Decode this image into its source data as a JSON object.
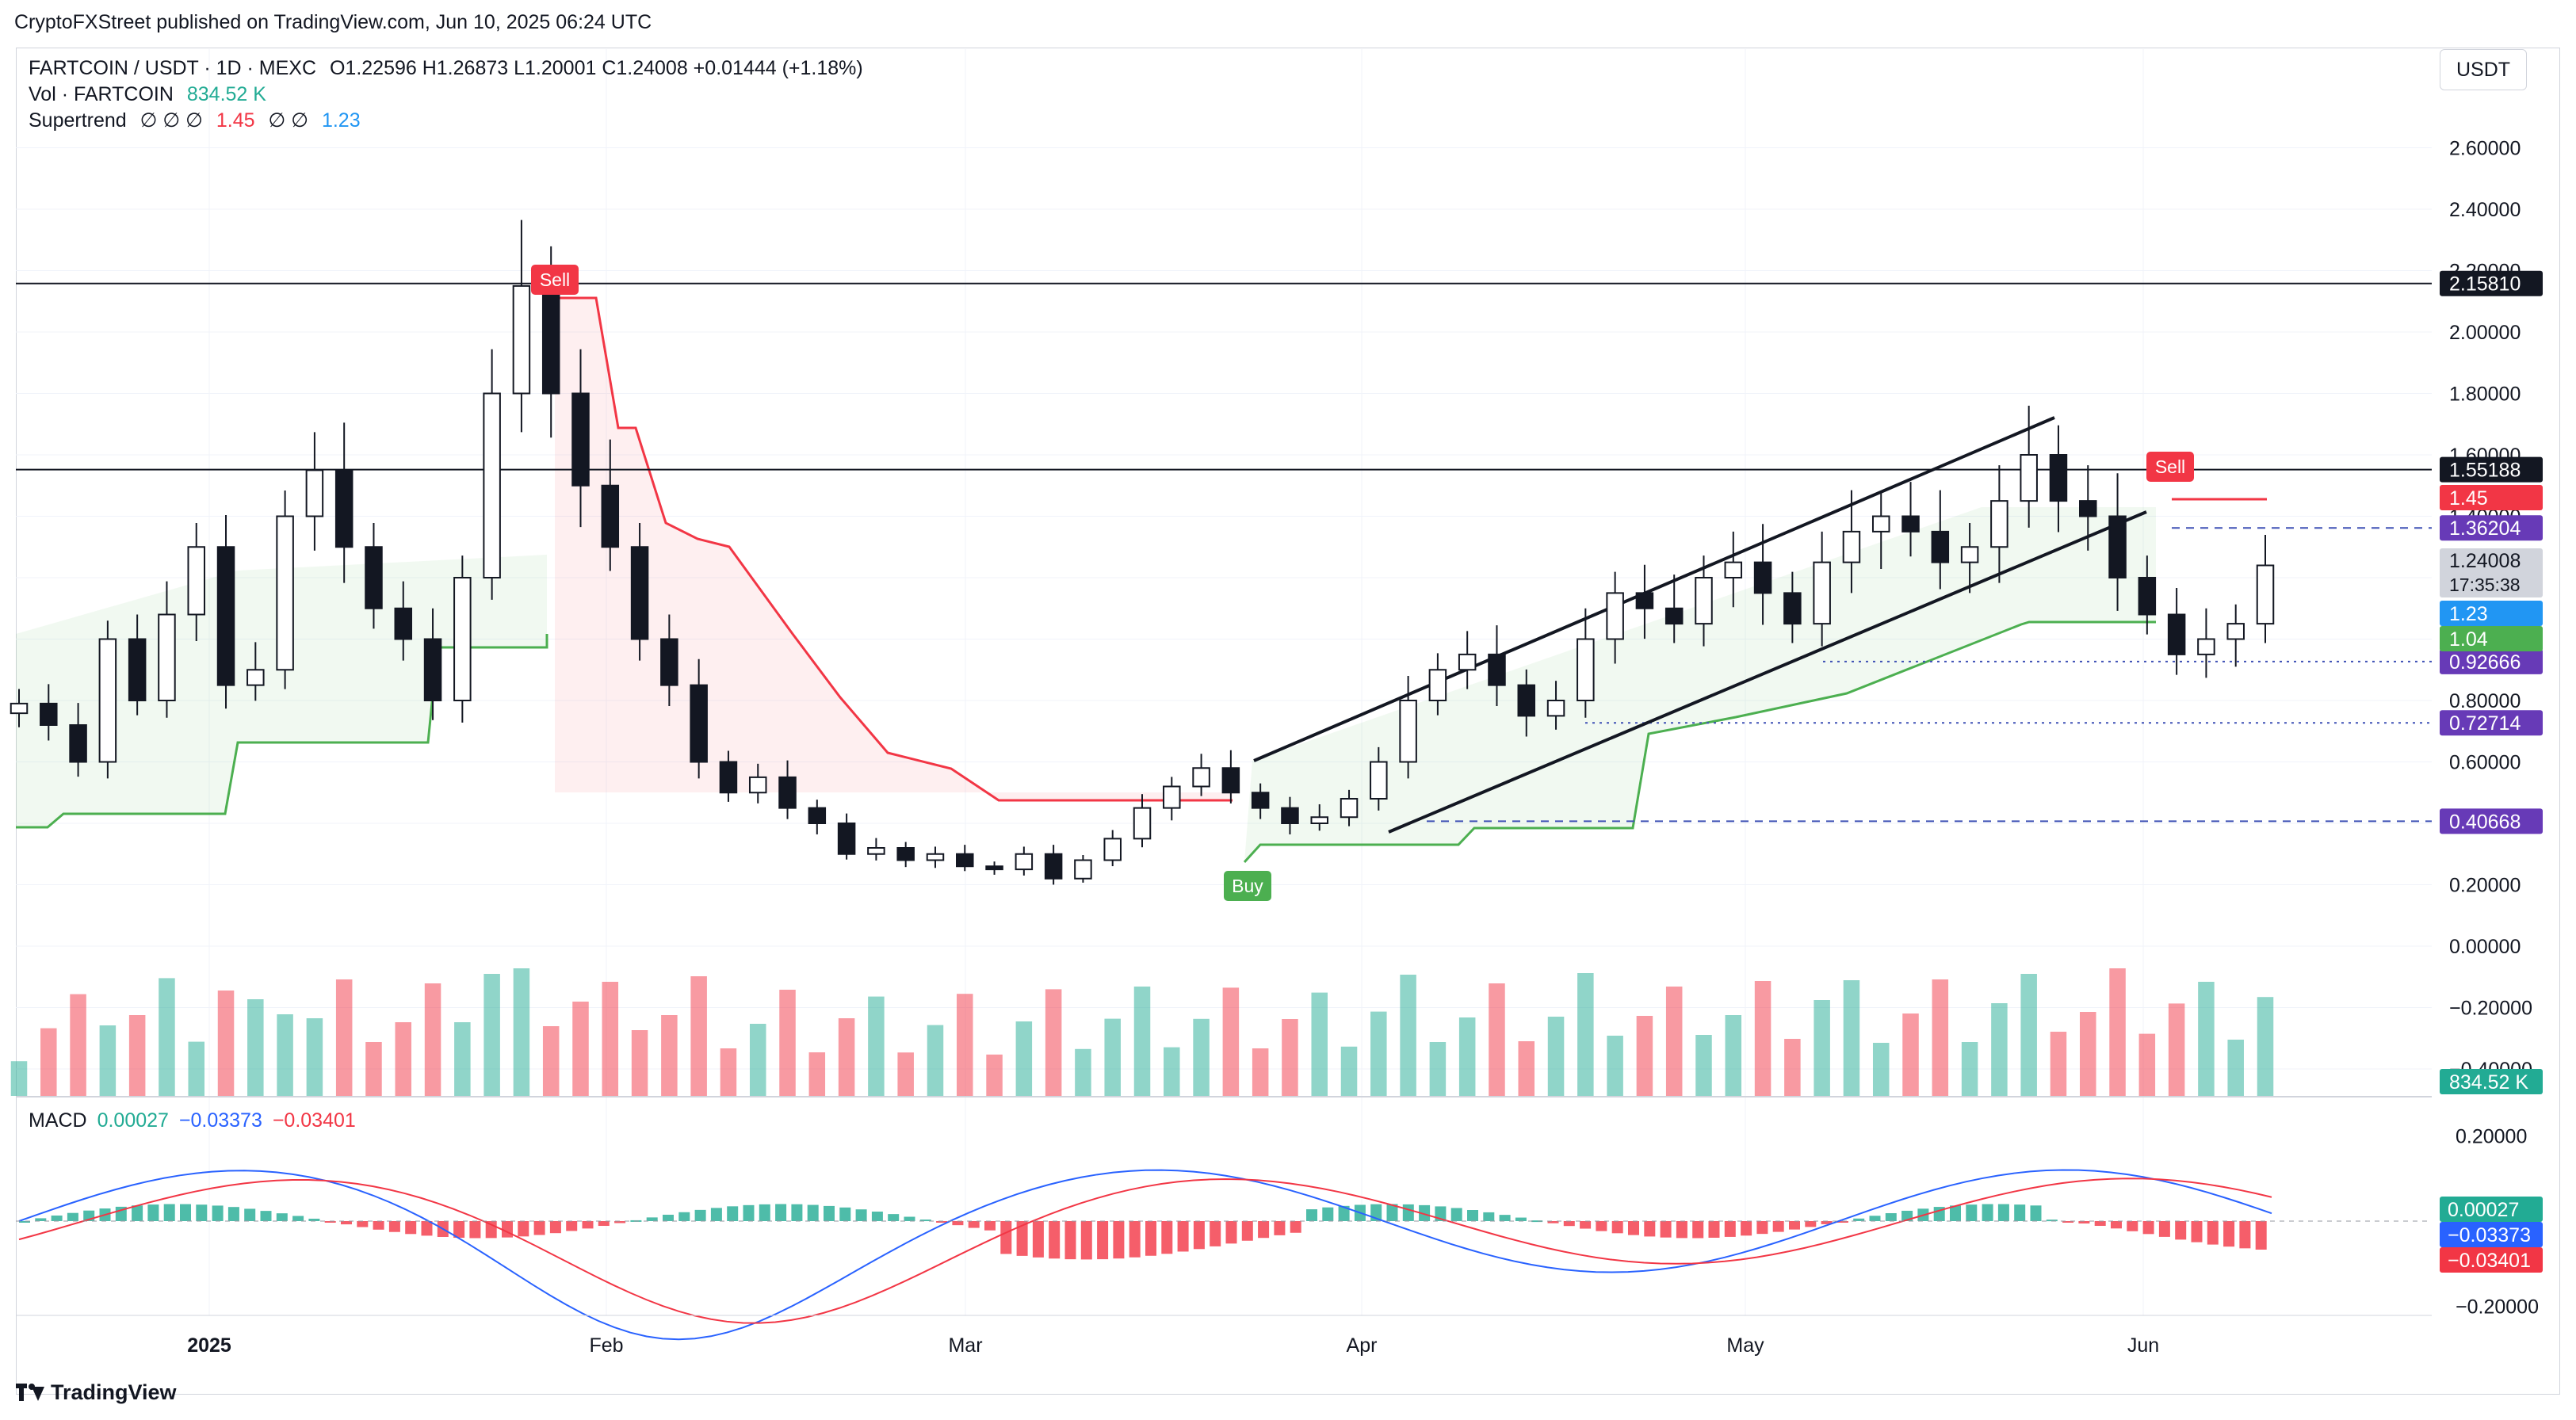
{
  "header": {
    "publisher_line": "CryptoFXStreet published on TradingView.com, Jun 10, 2025 06:24 UTC"
  },
  "legend": {
    "symbol": "FARTCOIN / USDT · 1D · MEXC",
    "ohlc": "O1.22596  H1.26873  L1.20001  C1.24008  +0.01444  (+1.18%)",
    "vol_label": "Vol · FARTCOIN",
    "vol_value": "834.52 K",
    "supertrend_label": "Supertrend",
    "supertrend_params": "∅ ∅ ∅",
    "supertrend_up": "1.45",
    "supertrend_params2": "∅ ∅",
    "supertrend_down": "1.23",
    "macd_label": "MACD",
    "macd_hist": "0.00027",
    "macd_line": "−0.03373",
    "macd_signal": "−0.03401"
  },
  "currency": "USDT",
  "footer": {
    "brand": "TradingView"
  },
  "colors": {
    "up": "#22ab94",
    "down": "#f23645",
    "supertrend_up": "#4caf50",
    "supertrend_down": "#f23645",
    "macd": "#2962ff",
    "signal": "#f23645",
    "level_box": "#673ab7"
  },
  "chart_data": {
    "type": "candlestick",
    "title": "FARTCOIN / USDT · 1D · MEXC",
    "price_axis_ticks": [
      "2.60000",
      "2.40000",
      "2.20000",
      "2.00000",
      "1.80000",
      "1.60000",
      "1.40000",
      "1.20000",
      "1.00000",
      "0.80000",
      "0.60000",
      "0.40000",
      "0.20000",
      "0.00000",
      "−0.20000",
      "−0.40000"
    ],
    "time_axis_labels": [
      "2025",
      "Feb",
      "Mar",
      "Apr",
      "May",
      "Jun"
    ],
    "horizontal_levels": [
      {
        "value": 2.1581,
        "label": "2.15810",
        "style": "solid"
      },
      {
        "value": 1.55188,
        "label": "1.55188",
        "style": "solid"
      },
      {
        "value": 1.36204,
        "label": "1.36204",
        "style": "dashed"
      },
      {
        "value": 0.92666,
        "label": "0.92666",
        "style": "dotted"
      },
      {
        "value": 0.72714,
        "label": "0.72714",
        "style": "dotted"
      },
      {
        "value": 0.40668,
        "label": "0.40668",
        "style": "dashed"
      }
    ],
    "price_labels": {
      "last": "1.24008",
      "countdown": "17:35:38",
      "supertrend_sell": "1.45",
      "supertrend_buy_line": "1.23",
      "supertrend_support": "1.04",
      "volume": "834.52 K"
    },
    "signals": [
      {
        "label": "Sell",
        "date": "2025-01-27"
      },
      {
        "label": "Buy",
        "date": "2025-03-24"
      },
      {
        "label": "Sell",
        "date": "2025-05-28"
      }
    ],
    "channel": {
      "upper": [
        [
          "2025-03-23",
          0.61
        ],
        [
          "2025-05-24",
          1.71
        ]
      ],
      "lower": [
        [
          "2025-03-31",
          0.35
        ],
        [
          "2025-05-31",
          1.42
        ]
      ]
    },
    "ohlc_close_path": [
      0.79,
      0.72,
      0.6,
      1.0,
      0.8,
      1.08,
      1.3,
      0.85,
      0.9,
      1.4,
      1.55,
      1.3,
      1.1,
      1.0,
      0.8,
      1.2,
      1.8,
      2.15,
      1.8,
      1.5,
      1.3,
      1.0,
      0.85,
      0.6,
      0.5,
      0.55,
      0.45,
      0.4,
      0.3,
      0.32,
      0.28,
      0.3,
      0.26,
      0.25,
      0.3,
      0.22,
      0.28,
      0.35,
      0.45,
      0.52,
      0.58,
      0.5,
      0.45,
      0.4,
      0.42,
      0.48,
      0.6,
      0.8,
      0.9,
      0.95,
      0.85,
      0.75,
      0.8,
      1.0,
      1.15,
      1.1,
      1.05,
      1.2,
      1.25,
      1.15,
      1.05,
      1.25,
      1.35,
      1.4,
      1.35,
      1.25,
      1.3,
      1.45,
      1.6,
      1.45,
      1.4,
      1.2,
      1.08,
      0.95,
      1.0,
      1.05,
      1.24
    ],
    "macd_axis_ticks": [
      "0.20000",
      "0.00000",
      "−0.20000"
    ],
    "macd": {
      "hist_last": 0.00027,
      "macd_last": -0.03373,
      "signal_last": -0.03401
    }
  }
}
